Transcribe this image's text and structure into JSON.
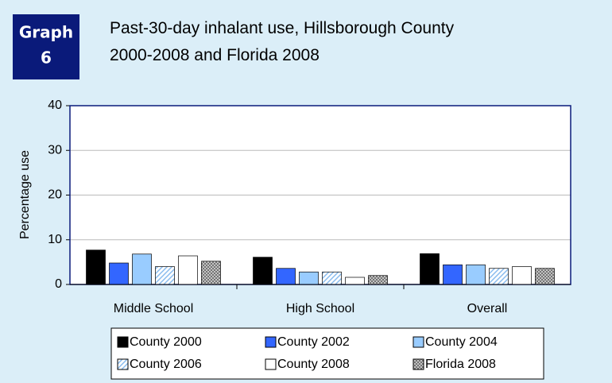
{
  "chart_data": {
    "type": "bar",
    "badge": [
      "Graph",
      "6"
    ],
    "title": [
      "Past-30-day inhalant use, Hillsborough County",
      "2000-2008 and Florida 2008"
    ],
    "y_label": "Percentage use",
    "categories": [
      "Middle School",
      "High School",
      "Overall"
    ],
    "series": [
      {
        "name": "County 2000",
        "color": "#000000",
        "values": [
          7.7,
          6.1,
          6.9
        ]
      },
      {
        "name": "County 2002",
        "color": "#3366ff",
        "values": [
          4.8,
          3.6,
          4.4
        ]
      },
      {
        "name": "County 2004",
        "color": "#99ccff",
        "values": [
          6.8,
          2.8,
          4.4
        ]
      },
      {
        "name": "County 2006",
        "color": "#cce6ff",
        "pattern": "diagonal",
        "values": [
          4.0,
          2.8,
          3.6
        ]
      },
      {
        "name": "County 2008",
        "color": "#ffffff",
        "values": [
          6.4,
          1.6,
          4.0
        ]
      },
      {
        "name": "Florida 2008",
        "color": "#808080",
        "pattern": "cross",
        "values": [
          5.2,
          2.0,
          3.6
        ]
      }
    ],
    "ylim": [
      0,
      40
    ],
    "yticks": [
      0,
      10,
      20,
      30,
      40
    ],
    "grid": true,
    "legend": "bottom"
  }
}
